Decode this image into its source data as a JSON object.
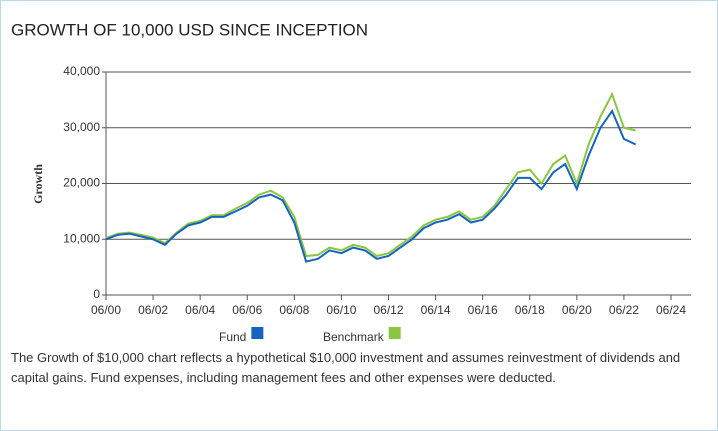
{
  "chart_data": {
    "type": "line",
    "title": "GROWTH OF 10,000 USD SINCE INCEPTION",
    "y_label": "Growth",
    "x": [
      "06/00",
      "12/00",
      "06/01",
      "12/01",
      "06/02",
      "12/02",
      "06/03",
      "12/03",
      "06/04",
      "12/04",
      "06/05",
      "12/05",
      "06/06",
      "12/06",
      "06/07",
      "12/07",
      "06/08",
      "12/08",
      "06/09",
      "12/09",
      "06/10",
      "12/10",
      "06/11",
      "12/11",
      "06/12",
      "12/12",
      "06/13",
      "12/13",
      "06/14",
      "12/14",
      "06/15",
      "12/15",
      "06/16",
      "12/16",
      "06/17",
      "12/17",
      "06/18",
      "12/18",
      "06/19",
      "12/19",
      "06/20",
      "12/20",
      "06/21",
      "12/21",
      "06/22",
      "12/22"
    ],
    "series": [
      {
        "name": "Fund",
        "color": "#1565c0",
        "values": [
          10000,
          10800,
          11000,
          10500,
          10000,
          9000,
          11000,
          12500,
          13000,
          14000,
          14000,
          15000,
          16000,
          17500,
          18000,
          17000,
          13000,
          6000,
          6500,
          8000,
          7500,
          8500,
          8000,
          6500,
          7000,
          8500,
          10000,
          12000,
          13000,
          13500,
          14500,
          13000,
          13500,
          15500,
          18000,
          21000,
          21000,
          19000,
          22000,
          23500,
          19000,
          25000,
          30000,
          33000,
          28000,
          27000
        ]
      },
      {
        "name": "Benchmark",
        "color": "#8cc63f",
        "values": [
          10200,
          11000,
          11200,
          10800,
          10300,
          9300,
          11200,
          12800,
          13300,
          14300,
          14300,
          15500,
          16500,
          18000,
          18700,
          17500,
          14000,
          7000,
          7200,
          8500,
          8000,
          9000,
          8500,
          7000,
          7500,
          9000,
          10500,
          12500,
          13500,
          14000,
          15000,
          13500,
          14000,
          16000,
          19000,
          22000,
          22500,
          20000,
          23500,
          25000,
          20000,
          27000,
          32000,
          36000,
          30000,
          29500
        ]
      }
    ],
    "xlim": [
      "06/00",
      "06/24"
    ],
    "xticks": [
      "06/00",
      "06/02",
      "06/04",
      "06/06",
      "06/08",
      "06/10",
      "06/12",
      "06/14",
      "06/16",
      "06/18",
      "06/20",
      "06/22",
      "06/24"
    ],
    "ylim": [
      0,
      40000
    ],
    "yticks": [
      0,
      {
        "value": 10000,
        "label": "10,000"
      },
      {
        "value": 20000,
        "label": "20,000"
      },
      {
        "value": 30000,
        "label": "30,000"
      },
      {
        "value": 40000,
        "label": "40,000"
      }
    ],
    "grid": true,
    "note": "The Growth of $10,000 chart reflects a hypothetical $10,000 investment and assumes reinvestment of dividends and capital gains. Fund expenses, including management fees and other expenses were deducted."
  }
}
